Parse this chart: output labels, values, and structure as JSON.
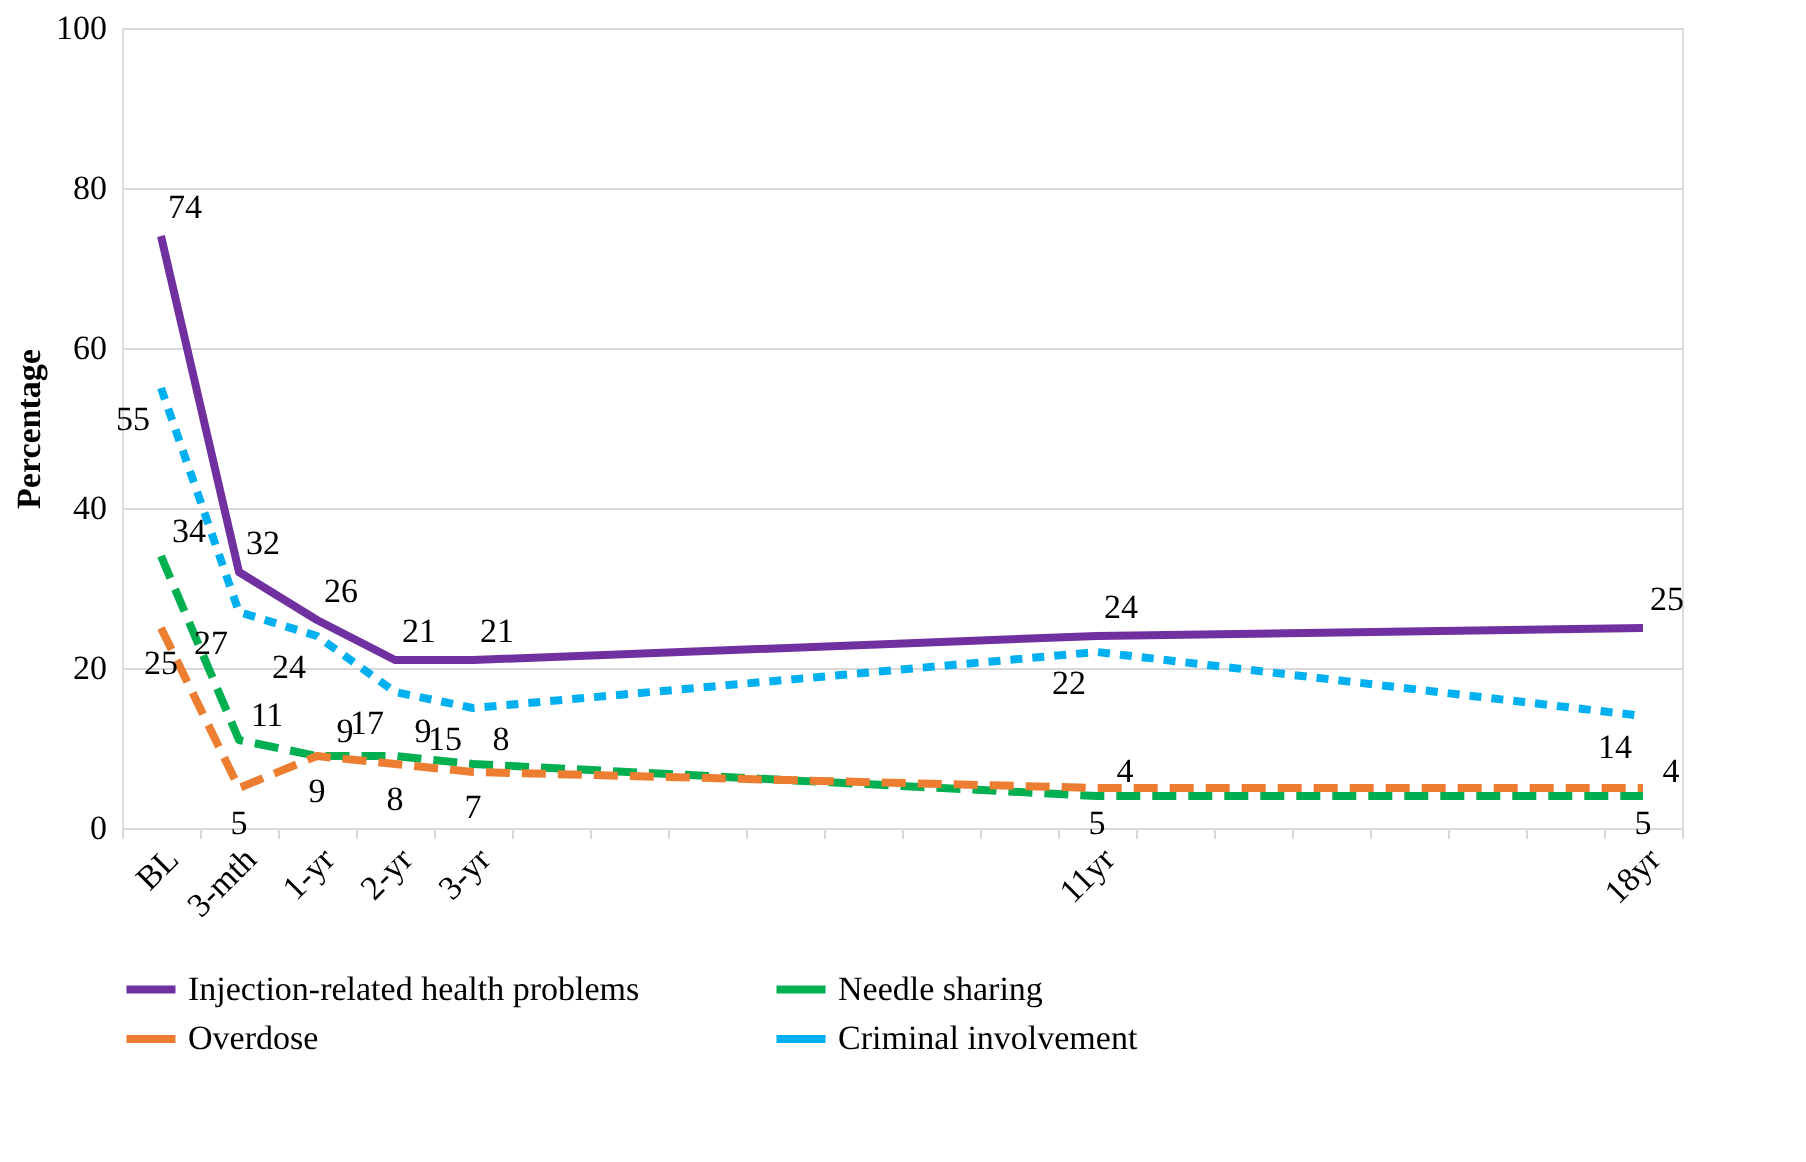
{
  "chart_data": {
    "type": "line",
    "ylabel": "Percentage",
    "categories": [
      "BL",
      "3-mth",
      "1-yr",
      "2-yr",
      "3-yr",
      null,
      null,
      null,
      null,
      null,
      null,
      null,
      "11yr",
      null,
      null,
      null,
      null,
      null,
      null,
      "18yr"
    ],
    "ylim": [
      0,
      100
    ],
    "yticks": [
      0,
      20,
      40,
      60,
      80,
      100
    ],
    "grid": "y",
    "legend": "bottom",
    "data_labels": true,
    "marker": "none",
    "series": [
      {
        "name": "Injection-related health problems",
        "color": "#7030a0",
        "line_style": "solid",
        "values": [
          74,
          32,
          26,
          21,
          21,
          null,
          null,
          null,
          null,
          null,
          null,
          null,
          24,
          null,
          null,
          null,
          null,
          null,
          null,
          25
        ]
      },
      {
        "name": "Needle sharing",
        "color": "#00b050",
        "line_style": "dashed",
        "values": [
          34,
          11,
          9,
          9,
          8,
          null,
          null,
          null,
          null,
          null,
          null,
          null,
          4,
          null,
          null,
          null,
          null,
          null,
          null,
          4
        ]
      },
      {
        "name": "Overdose",
        "color": "#ed7d31",
        "line_style": "dashed",
        "values": [
          25,
          5,
          9,
          8,
          7,
          null,
          null,
          null,
          null,
          null,
          null,
          null,
          5,
          null,
          null,
          null,
          null,
          null,
          null,
          5
        ]
      },
      {
        "name": "Criminal involvement",
        "color": "#00b0f0",
        "line_style": "dotted",
        "values": [
          55,
          27,
          24,
          17,
          15,
          null,
          null,
          null,
          null,
          null,
          null,
          null,
          22,
          null,
          null,
          null,
          null,
          null,
          null,
          14
        ]
      }
    ]
  }
}
